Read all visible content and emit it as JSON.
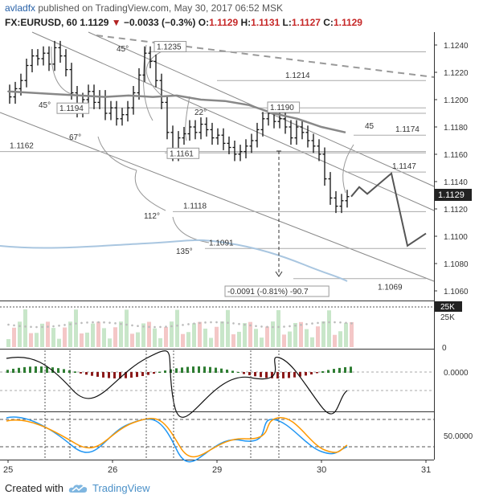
{
  "header": {
    "author": "avladfx",
    "published": "published on TradingView.com, May 30, 2017 06:52 MSK",
    "symbol": "FX:EURUSD, 60",
    "last": "1.1129",
    "change": "−0.0033 (−0.3%)",
    "o_label": "O:",
    "o_value": "1.1129",
    "h_label": "H:",
    "h_value": "1.1131",
    "l_label": "L:",
    "l_value": "1.1127",
    "c_label": "C:",
    "c_value": "1.1129"
  },
  "footer": {
    "created_with": "Created with",
    "brand": "TradingView",
    "icon": "tradingview-cloud-icon"
  },
  "colors": {
    "up": "#2e7d32",
    "down": "#c62828",
    "ma": "#888888",
    "line": "#333333",
    "blue": "#2196f3",
    "orange": "#ff9800"
  },
  "chart_data": [
    {
      "type": "candlestick",
      "title": "",
      "y_ticks": [
        "1.1240",
        "1.1220",
        "1.1200",
        "1.1180",
        "1.1160",
        "1.1140",
        "1.1120",
        "1.1100",
        "1.1080",
        "1.1060"
      ],
      "ylim": [
        1.1055,
        1.125
      ],
      "x_ticks": [
        "25",
        "26",
        "29",
        "30",
        "31"
      ],
      "last_price_label": "1.1129",
      "annotations": [
        "1.1235",
        "1.1214",
        "1.1194",
        "1.1190",
        "1.1174",
        "1.1162",
        "1.1161",
        "1.1147",
        "1.1118",
        "1.1091",
        "1.1069",
        "-0.0091 (-0.81%) -90.7"
      ],
      "angles": [
        "45°",
        "45°",
        "22°",
        "67°",
        "45",
        "112°",
        "135°"
      ],
      "close_series": [
        1.1202,
        1.1208,
        1.1214,
        1.1225,
        1.1232,
        1.123,
        1.1234,
        1.1226,
        1.1238,
        1.1232,
        1.1222,
        1.1205,
        1.1192,
        1.12,
        1.1206,
        1.1198,
        1.1202,
        1.119,
        1.1194,
        1.1186,
        1.1189,
        1.1194,
        1.1205,
        1.1218,
        1.1234,
        1.1228,
        1.1214,
        1.1198,
        1.1176,
        1.116,
        1.1172,
        1.1175,
        1.118,
        1.1176,
        1.1182,
        1.1178,
        1.1172,
        1.1174,
        1.1168,
        1.1165,
        1.116,
        1.1162,
        1.1166,
        1.117,
        1.1178,
        1.1186,
        1.119,
        1.1184,
        1.1186,
        1.118,
        1.1172,
        1.118,
        1.1176,
        1.117,
        1.1166,
        1.116,
        1.1142,
        1.1128,
        1.1122,
        1.1126,
        1.1129
      ],
      "forecast_path": [
        1.1129,
        1.1136,
        1.1131,
        1.1146,
        1.1093,
        1.1102
      ],
      "ma_series": [
        1.1206,
        1.1205,
        1.1204,
        1.1203,
        1.1202,
        1.1203,
        1.1202,
        1.1203,
        1.12,
        1.1199,
        1.1196,
        1.119,
        1.1186,
        1.118,
        1.1176
      ]
    },
    {
      "type": "bar",
      "label": "25K",
      "y_ticks": [
        "25K",
        "0"
      ]
    },
    {
      "type": "line",
      "y_ticks": [
        "0.0000"
      ]
    },
    {
      "type": "line",
      "y_ticks": [
        "50.0000"
      ]
    }
  ]
}
